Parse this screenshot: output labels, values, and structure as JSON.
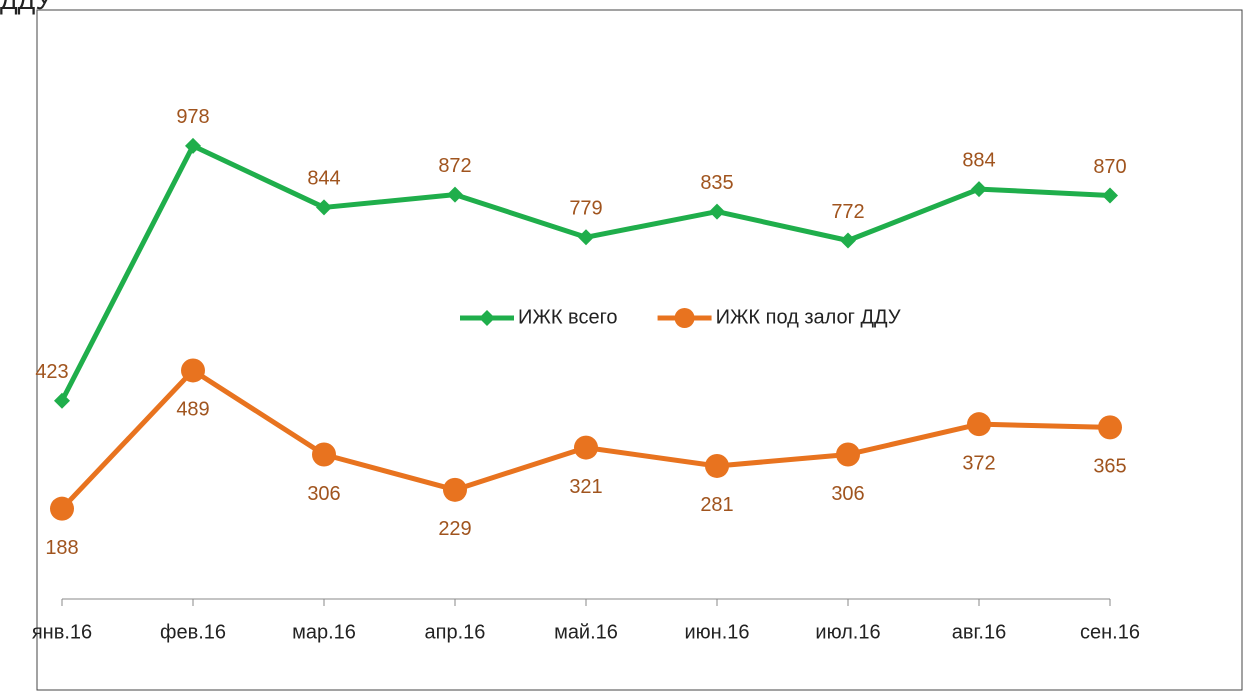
{
  "chart_data": {
    "type": "line",
    "title": "ДДУ",
    "categories": [
      "янв.16",
      "фев.16",
      "мар.16",
      "апр.16",
      "май.16",
      "июн.16",
      "июл.16",
      "авг.16",
      "сен.16"
    ],
    "series": [
      {
        "name": "ИЖК всего",
        "color": "#1fae4b",
        "marker": "diamond",
        "values": [
          423,
          978,
          844,
          872,
          779,
          835,
          772,
          884,
          870
        ]
      },
      {
        "name": "ИЖК под залог ДДУ",
        "color": "#e8731f",
        "marker": "circle",
        "values": [
          188,
          489,
          306,
          229,
          321,
          281,
          306,
          372,
          365
        ]
      }
    ],
    "ylim": [
      0,
      1250
    ],
    "legend": "center"
  }
}
